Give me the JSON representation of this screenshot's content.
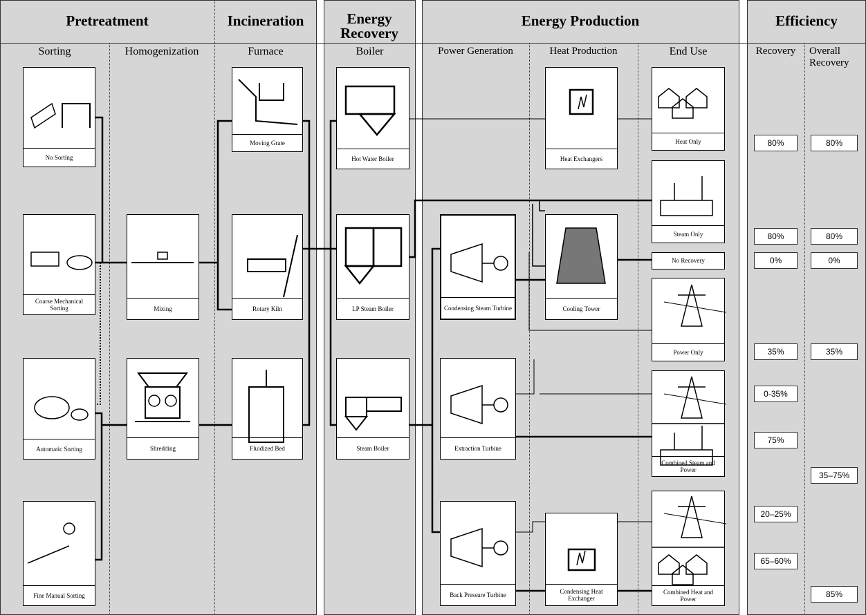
{
  "sections": [
    {
      "title": "Pretreatment"
    },
    {
      "title": "Incineration"
    },
    {
      "title": "Energy Recovery"
    },
    {
      "title": "Energy Production"
    },
    {
      "title": "Efficiency"
    }
  ],
  "columns": [
    "Sorting",
    "Homogenization",
    "Furnace",
    "Boiler",
    "Power Generation",
    "Heat Production",
    "End Use",
    "Recovery",
    "Overall Recovery"
  ],
  "processes": {
    "sorting": [
      "No Sorting",
      "Coarse Mechanical Sorting",
      "Automatic Sorting",
      "Fine Manual Sorting"
    ],
    "homogenization": [
      "Mixing",
      "Shredding"
    ],
    "furnace": [
      "Moving Grate",
      "Rotary Kiln",
      "Fluidized Bed"
    ],
    "boiler": [
      "Hot Water Boiler",
      "LP Steam Boiler",
      "Steam Boiler"
    ],
    "power_generation": [
      "Condensing Steam Turbine",
      "Extraction Turbine",
      "Back Pressure Turbine"
    ],
    "heat_production": [
      "Heat Exchangers",
      "Cooling Tower",
      "Condensing Heat Exchanger"
    ],
    "end_use": [
      "Heat Only",
      "Steam Only",
      "No Recovery",
      "Power Only",
      "Combined Steam and Power",
      "Combined Heat and Power"
    ]
  },
  "efficiency": {
    "recovery": [
      "80%",
      "80%",
      "0%",
      "35%",
      "0-35%",
      "75%",
      "20–25%",
      "65–60%"
    ],
    "overall": [
      "80%",
      "80%",
      "0%",
      "35%",
      "35–75%",
      "85%"
    ]
  }
}
